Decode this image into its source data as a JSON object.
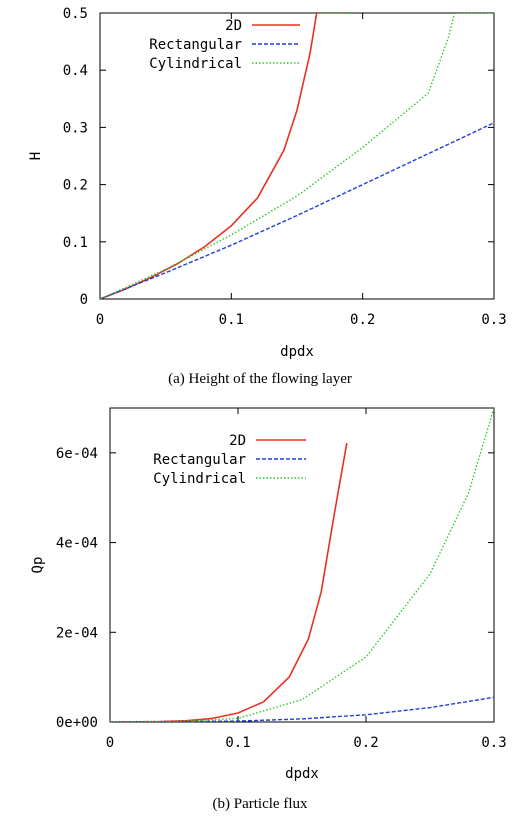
{
  "chart_data": [
    {
      "type": "line",
      "caption": "(a) Height of the flowing layer",
      "xlabel": "dpdx",
      "ylabel": "H",
      "xlim": [
        0,
        0.3
      ],
      "ylim": [
        0,
        0.5
      ],
      "x_ticks": [
        "0",
        "0.1",
        "0.2",
        "0.3"
      ],
      "y_ticks": [
        "0",
        "0.1",
        "0.2",
        "0.3",
        "0.4",
        "0.5"
      ],
      "legend_position": "top-left",
      "series": [
        {
          "name": "2D",
          "color": "#e8321e",
          "style": "solid",
          "x": [
            0,
            0.02,
            0.04,
            0.06,
            0.08,
            0.1,
            0.12,
            0.14,
            0.15,
            0.16,
            0.165,
            0.19
          ],
          "y": [
            0,
            0.018,
            0.039,
            0.063,
            0.092,
            0.128,
            0.177,
            0.26,
            0.33,
            0.43,
            0.5,
            0.5
          ]
        },
        {
          "name": "Rectangular",
          "color": "#1f3fd6",
          "style": "dashed",
          "x": [
            0,
            0.05,
            0.1,
            0.15,
            0.2,
            0.25,
            0.3
          ],
          "y": [
            0,
            0.046,
            0.094,
            0.146,
            0.2,
            0.254,
            0.308
          ]
        },
        {
          "name": "Cylindrical",
          "color": "#2fc82f",
          "style": "dotted",
          "x": [
            0,
            0.05,
            0.1,
            0.15,
            0.2,
            0.25,
            0.265,
            0.27,
            0.3
          ],
          "y": [
            0,
            0.052,
            0.112,
            0.18,
            0.265,
            0.36,
            0.455,
            0.5,
            0.5
          ]
        }
      ]
    },
    {
      "type": "line",
      "caption": "(b) Particle flux",
      "xlabel": "dpdx",
      "ylabel": "Qp",
      "xlim": [
        0,
        0.3
      ],
      "ylim": [
        0,
        0.0007
      ],
      "x_ticks": [
        "0",
        "0.1",
        "0.2",
        "0.3"
      ],
      "y_ticks": [
        "0e+00",
        "2e-04",
        "4e-04",
        "6e-04"
      ],
      "y_tick_values": [
        0,
        0.0002,
        0.0004,
        0.0006
      ],
      "legend_position": "top-left",
      "series": [
        {
          "name": "2D",
          "color": "#e8321e",
          "style": "solid",
          "x": [
            0,
            0.04,
            0.06,
            0.08,
            0.1,
            0.12,
            0.14,
            0.155,
            0.165,
            0.175,
            0.185
          ],
          "y": [
            0,
            1e-06,
            3e-06,
            8e-06,
            2e-05,
            4.5e-05,
            0.0001,
            0.000185,
            0.00029,
            0.00046,
            0.000622
          ]
        },
        {
          "name": "Rectangular",
          "color": "#1f3fd6",
          "style": "dashed",
          "x": [
            0,
            0.1,
            0.15,
            0.2,
            0.25,
            0.3
          ],
          "y": [
            0,
            2e-06,
            7e-06,
            1.6e-05,
            3.2e-05,
            5.5e-05
          ]
        },
        {
          "name": "Cylindrical",
          "color": "#2fc82f",
          "style": "dotted",
          "x": [
            0,
            0.05,
            0.1,
            0.15,
            0.2,
            0.25,
            0.28,
            0.3
          ],
          "y": [
            0,
            1e-06,
            8e-06,
            5e-05,
            0.000145,
            0.00033,
            0.00051,
            0.0007
          ]
        }
      ]
    }
  ]
}
